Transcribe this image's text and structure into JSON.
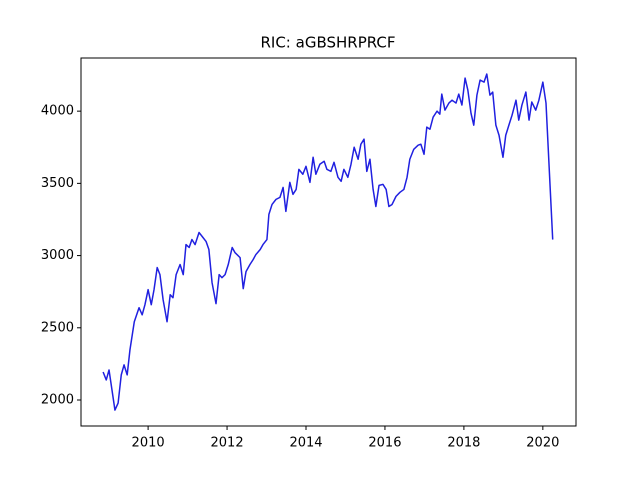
{
  "chart_data": {
    "type": "line",
    "title": "RIC: aGBSHRPRCF",
    "x": [
      2008.86,
      2008.94,
      2009.01,
      2009.16,
      2009.24,
      2009.32,
      2009.39,
      2009.47,
      2009.54,
      2009.65,
      2009.77,
      2009.85,
      2009.92,
      2010.0,
      2010.08,
      2010.15,
      2010.23,
      2010.3,
      2010.38,
      2010.48,
      2010.56,
      2010.63,
      2010.71,
      2010.81,
      2010.89,
      2010.96,
      2011.04,
      2011.11,
      2011.19,
      2011.29,
      2011.39,
      2011.47,
      2011.54,
      2011.62,
      2011.72,
      2011.8,
      2011.87,
      2011.95,
      2012.03,
      2012.13,
      2012.2,
      2012.33,
      2012.41,
      2012.48,
      2012.58,
      2012.66,
      2012.73,
      2012.84,
      2012.91,
      2013.01,
      2013.06,
      2013.14,
      2013.24,
      2013.34,
      2013.42,
      2013.49,
      2013.59,
      2013.67,
      2013.75,
      2013.82,
      2013.92,
      2014.0,
      2014.1,
      2014.18,
      2014.25,
      2014.35,
      2014.46,
      2014.53,
      2014.63,
      2014.71,
      2014.81,
      2014.89,
      2014.96,
      2015.06,
      2015.14,
      2015.22,
      2015.32,
      2015.39,
      2015.47,
      2015.54,
      2015.62,
      2015.7,
      2015.77,
      2015.85,
      2015.95,
      2016.03,
      2016.1,
      2016.18,
      2016.28,
      2016.38,
      2016.48,
      2016.56,
      2016.63,
      2016.73,
      2016.84,
      2016.91,
      2016.99,
      2017.06,
      2017.14,
      2017.22,
      2017.32,
      2017.39,
      2017.44,
      2017.52,
      2017.62,
      2017.7,
      2017.8,
      2017.87,
      2017.95,
      2018.03,
      2018.1,
      2018.18,
      2018.25,
      2018.33,
      2018.41,
      2018.51,
      2018.58,
      2018.66,
      2018.73,
      2018.81,
      2018.89,
      2018.99,
      2019.06,
      2019.14,
      2019.22,
      2019.32,
      2019.39,
      2019.47,
      2019.57,
      2019.65,
      2019.72,
      2019.82,
      2019.9,
      2020.0,
      2020.08,
      2020.15,
      2020.25
    ],
    "values": [
      2194,
      2139,
      2208,
      1930,
      1979,
      2174,
      2243,
      2174,
      2347,
      2542,
      2639,
      2590,
      2660,
      2764,
      2660,
      2764,
      2917,
      2868,
      2694,
      2542,
      2729,
      2708,
      2868,
      2938,
      2868,
      3076,
      3056,
      3111,
      3076,
      3160,
      3125,
      3097,
      3042,
      2813,
      2667,
      2868,
      2847,
      2868,
      2938,
      3056,
      3021,
      2986,
      2771,
      2889,
      2938,
      2972,
      3007,
      3042,
      3076,
      3111,
      3285,
      3354,
      3389,
      3403,
      3472,
      3306,
      3507,
      3424,
      3458,
      3597,
      3563,
      3618,
      3507,
      3681,
      3563,
      3632,
      3653,
      3597,
      3583,
      3646,
      3542,
      3514,
      3597,
      3542,
      3632,
      3750,
      3667,
      3771,
      3806,
      3583,
      3667,
      3458,
      3340,
      3486,
      3493,
      3458,
      3340,
      3354,
      3410,
      3438,
      3458,
      3542,
      3667,
      3736,
      3764,
      3771,
      3701,
      3889,
      3875,
      3958,
      4000,
      3979,
      4118,
      4007,
      4056,
      4076,
      4056,
      4118,
      4042,
      4229,
      4146,
      3986,
      3903,
      4111,
      4215,
      4201,
      4257,
      4111,
      4132,
      3903,
      3833,
      3681,
      3833,
      3903,
      3972,
      4076,
      3938,
      4042,
      4132,
      3938,
      4063,
      4007,
      4076,
      4201,
      4056,
      3667,
      3111
    ],
    "color": "#2020e0",
    "xlim": [
      2008.3,
      2020.84
    ],
    "xticks": [
      2010,
      2012,
      2014,
      2016,
      2018,
      2020
    ],
    "ylim": [
      1820,
      4368
    ],
    "yticks": [
      2000,
      2500,
      3000,
      3500,
      4000
    ],
    "grid": false
  }
}
